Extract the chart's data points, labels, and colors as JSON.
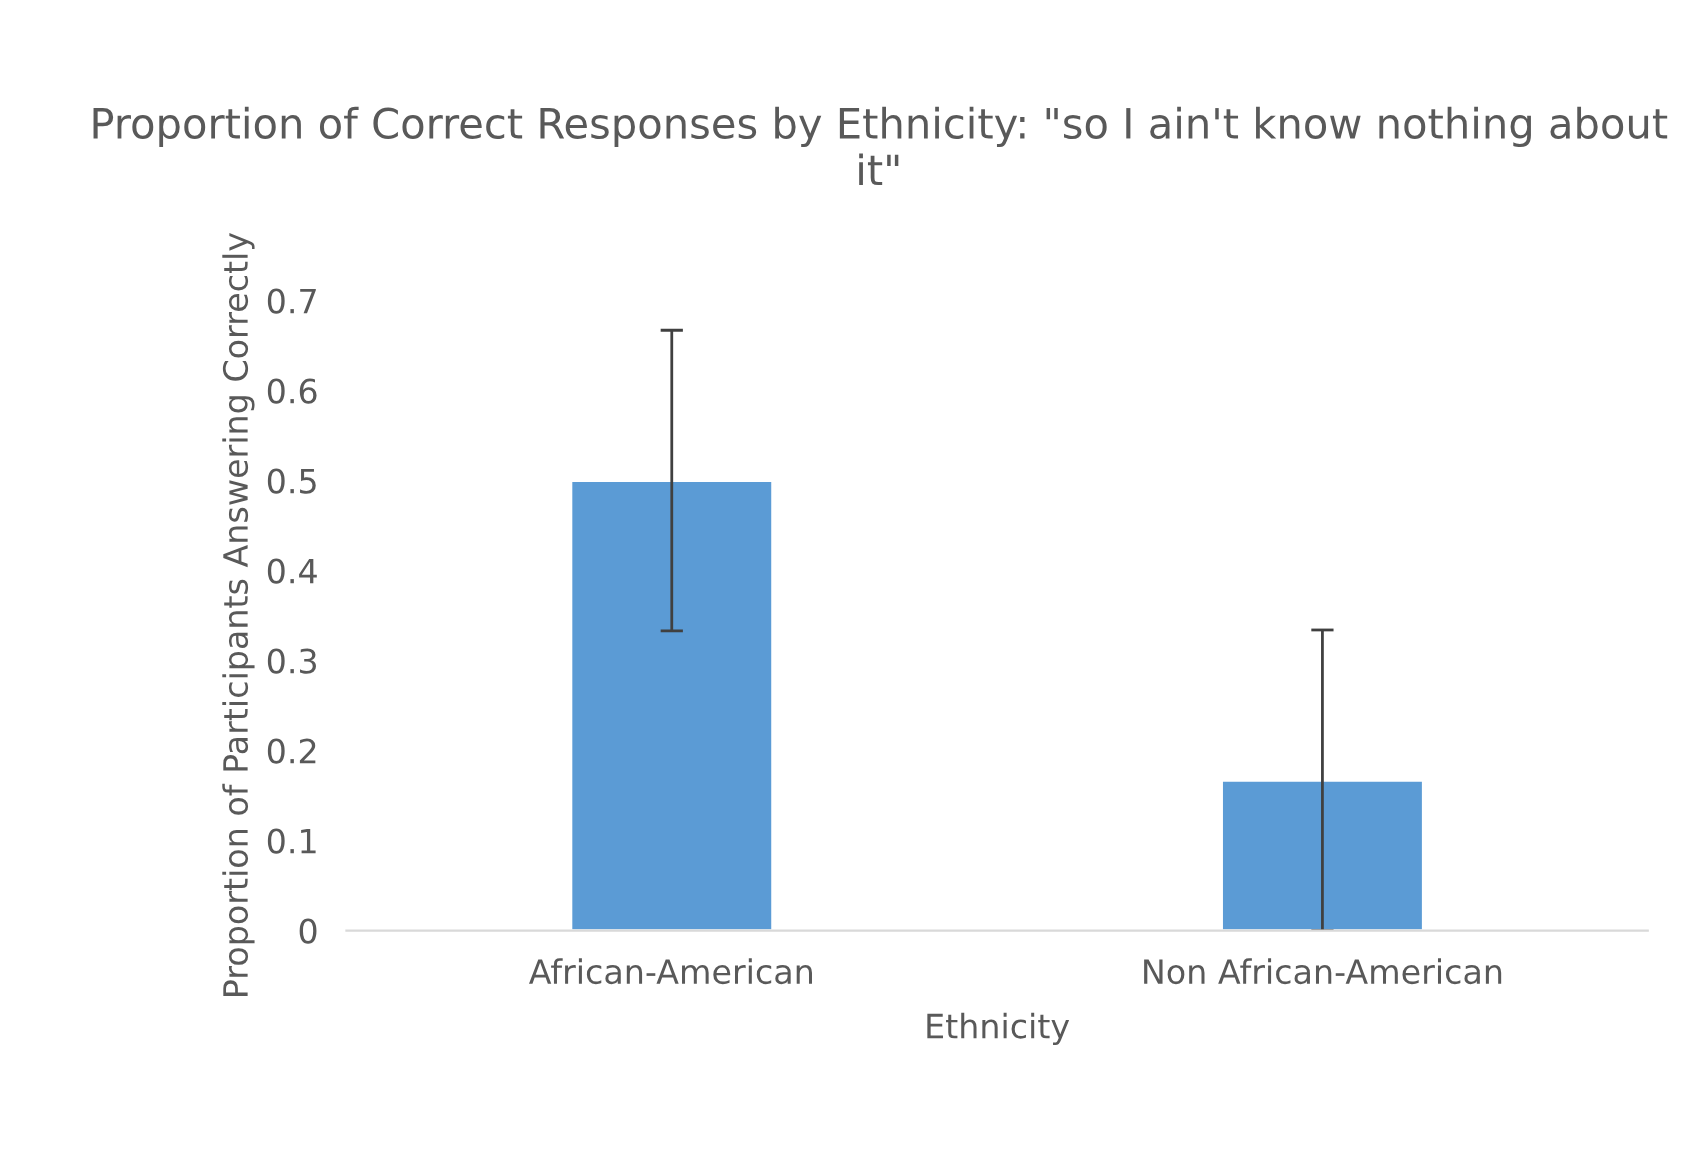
{
  "chart_data": {
    "type": "bar",
    "title": "Proportion of Correct Responses by Ethnicity: \"so I ain't know nothing about it\"",
    "xlabel": "Ethnicity",
    "ylabel": "Proportion of Participants Answering Correctly",
    "categories": [
      "African-American",
      "Non African-American"
    ],
    "values": [
      0.5,
      0.167
    ],
    "errors": [
      0.167,
      0.167
    ],
    "color": "#5b9bd5",
    "ylim": [
      0,
      0.7
    ],
    "yticks": [
      {
        "value": 0,
        "label": "0"
      },
      0.1,
      0.2,
      0.3,
      0.4,
      0.5,
      0.6,
      0.7
    ],
    "grid": false
  }
}
